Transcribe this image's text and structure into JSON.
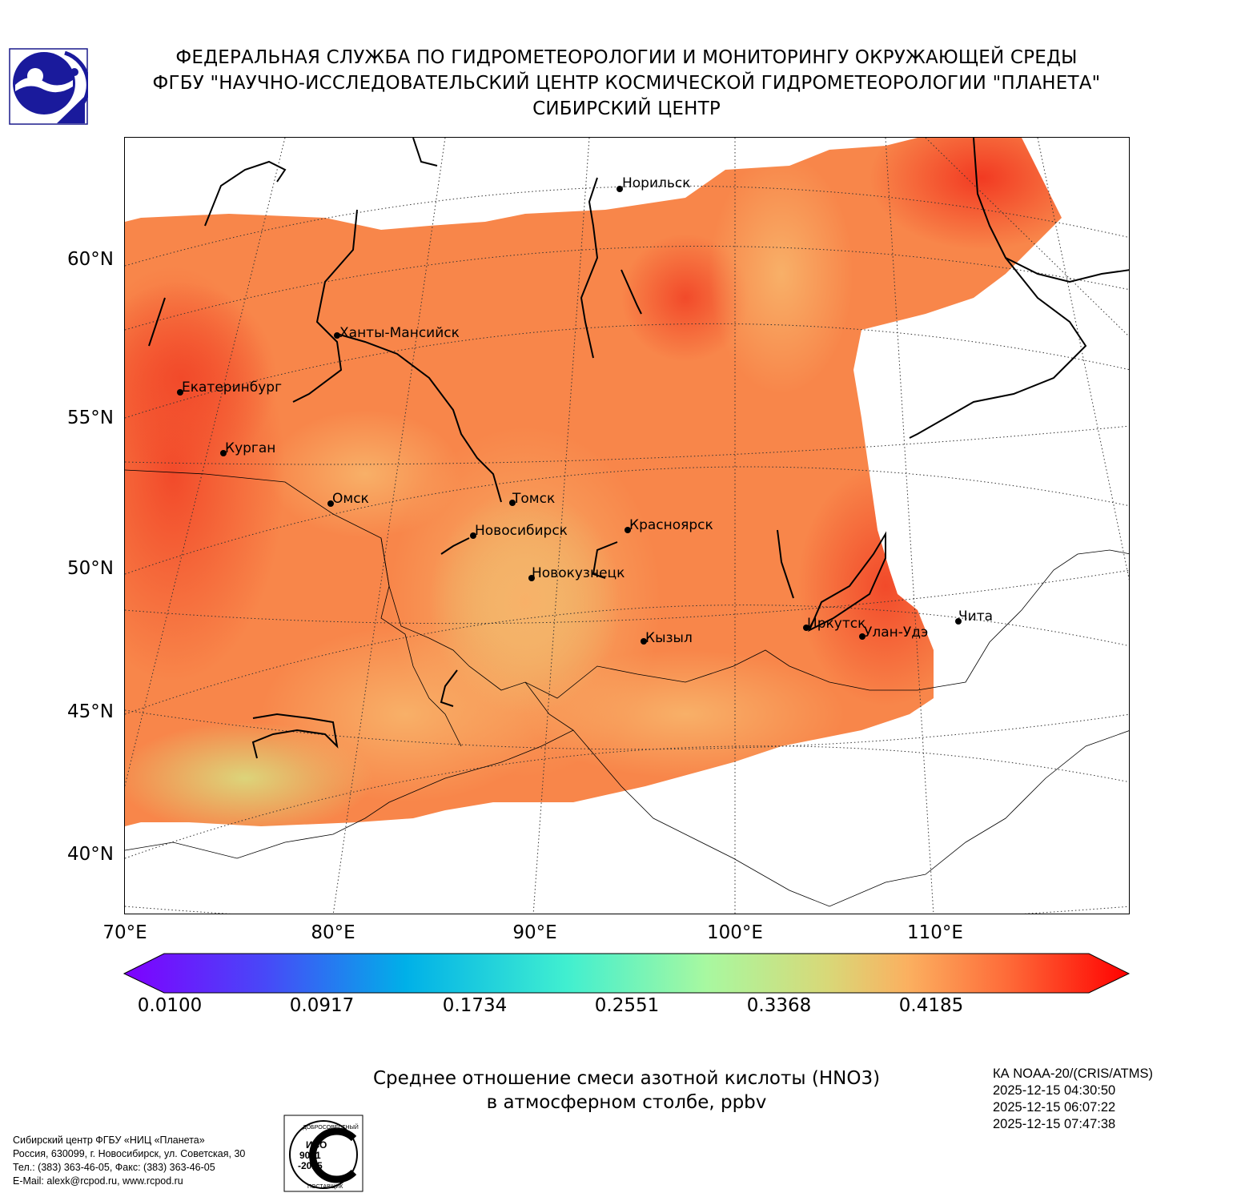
{
  "header": {
    "line1": "ФЕДЕРАЛЬНАЯ СЛУЖБА ПО ГИДРОМЕТЕОРОЛОГИИ И МОНИТОРИНГУ ОКРУЖАЮЩЕЙ СРЕДЫ",
    "line2": "ФГБУ \"НАУЧНО-ИССЛЕДОВАТЕЛЬСКИЙ ЦЕНТР КОСМИЧЕСКОЙ ГИДРОМЕТЕОРОЛОГИИ \"ПЛАНЕТА\"",
    "line3": "СИБИРСКИЙ ЦЕНТР"
  },
  "map": {
    "lat_labels": [
      "60°N",
      "55°N",
      "50°N",
      "45°N",
      "40°N"
    ],
    "lon_labels": [
      "70°E",
      "80°E",
      "90°E",
      "100°E",
      "110°E"
    ],
    "cities": [
      {
        "name": "Норильск"
      },
      {
        "name": "Ханты-Мансийск"
      },
      {
        "name": "Екатеринбург"
      },
      {
        "name": "Курган"
      },
      {
        "name": "Омск"
      },
      {
        "name": "Томск"
      },
      {
        "name": "Новосибирск"
      },
      {
        "name": "Красноярск"
      },
      {
        "name": "Новокузнецк"
      },
      {
        "name": "Кызыл"
      },
      {
        "name": "Иркутск"
      },
      {
        "name": "Улан-Удэ"
      },
      {
        "name": "Чита"
      }
    ]
  },
  "colorbar": {
    "ticks": [
      "0.0100",
      "0.0917",
      "0.1734",
      "0.2551",
      "0.3368",
      "0.4185"
    ],
    "colors": [
      "#7f00ff",
      "#3f60fa",
      "#00b3e6",
      "#40efd0",
      "#a8f8a0",
      "#d8d878",
      "#fbb060",
      "#fe6a38",
      "#ff0000"
    ]
  },
  "caption": {
    "line1": "Среднее отношение смеси азотной кислоты (HNO3)",
    "line2": "в атмосферном столбе, ppbv"
  },
  "satellite": {
    "name": "КА NOAA-20/(CRIS/ATMS)",
    "times": [
      "2025-12-15 04:30:50",
      "2025-12-15 06:07:22",
      "2025-12-15 07:47:38"
    ]
  },
  "footer": {
    "line1": "Сибирский центр ФГБУ «НИЦ «Планета»",
    "line2": "Россия, 630099, г. Новосибирск, ул. Советская, 30",
    "line3": "Тел.: (383) 363-46-05, Факс: (383) 363-46-05",
    "line4": "E-Mail: alexk@rcpod.ru, www.rcpod.ru"
  },
  "iso": {
    "top": "ДОБРОСОВЕСТНЫЙ",
    "line1": "ИСО",
    "line2": "9001",
    "line3": "-2015",
    "bottom": "ПОСТАВЩИК"
  }
}
